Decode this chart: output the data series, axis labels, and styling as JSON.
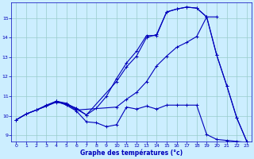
{
  "xlabel": "Graphe des températures (°c)",
  "bg_color": "#cceeff",
  "line_color": "#0000bb",
  "grid_color": "#99cccc",
  "xlim": [
    -0.5,
    23.5
  ],
  "ylim": [
    8.7,
    15.8
  ],
  "xticks": [
    0,
    1,
    2,
    3,
    4,
    5,
    6,
    7,
    8,
    9,
    10,
    11,
    12,
    13,
    14,
    15,
    16,
    17,
    18,
    19,
    20,
    21,
    22,
    23
  ],
  "yticks": [
    9,
    10,
    11,
    12,
    13,
    14,
    15
  ],
  "series": [
    {
      "x": [
        0,
        1,
        2,
        3,
        4,
        5,
        6,
        7,
        8,
        9,
        10,
        11,
        12,
        13,
        14,
        15,
        16,
        17,
        18,
        19,
        20
      ],
      "y": [
        9.8,
        10.1,
        10.3,
        10.5,
        10.7,
        10.6,
        10.4,
        10.05,
        10.4,
        11.0,
        11.9,
        12.7,
        13.3,
        14.1,
        14.1,
        15.3,
        15.45,
        15.55,
        15.5,
        15.05,
        15.05
      ]
    },
    {
      "x": [
        0,
        1,
        2,
        3,
        4,
        5,
        6,
        7,
        10,
        11,
        12,
        13,
        14,
        15,
        16,
        17,
        18,
        19,
        20,
        21,
        22,
        23
      ],
      "y": [
        9.8,
        10.1,
        10.3,
        10.55,
        10.75,
        10.65,
        10.35,
        10.05,
        11.75,
        12.5,
        13.05,
        14.0,
        14.15,
        15.3,
        15.45,
        15.55,
        15.5,
        15.05,
        13.1,
        11.55,
        9.9,
        8.7
      ]
    },
    {
      "x": [
        0,
        1,
        2,
        3,
        4,
        5,
        6,
        10,
        11,
        12,
        13,
        14,
        15,
        16,
        17,
        18,
        19,
        20,
        21,
        22,
        23
      ],
      "y": [
        9.8,
        10.1,
        10.3,
        10.5,
        10.75,
        10.6,
        10.3,
        10.45,
        10.85,
        11.2,
        11.75,
        12.55,
        13.05,
        13.5,
        13.75,
        14.05,
        15.05,
        13.1,
        11.55,
        9.9,
        8.7
      ]
    },
    {
      "x": [
        4,
        5,
        6,
        7,
        8,
        9,
        10,
        11,
        12,
        13,
        14,
        15,
        16,
        17,
        18,
        19,
        20,
        21,
        22,
        23
      ],
      "y": [
        10.75,
        10.55,
        10.25,
        9.7,
        9.65,
        9.45,
        9.55,
        10.45,
        10.35,
        10.5,
        10.35,
        10.55,
        10.55,
        10.55,
        10.55,
        9.05,
        8.8,
        8.75,
        8.7,
        8.65
      ]
    }
  ]
}
